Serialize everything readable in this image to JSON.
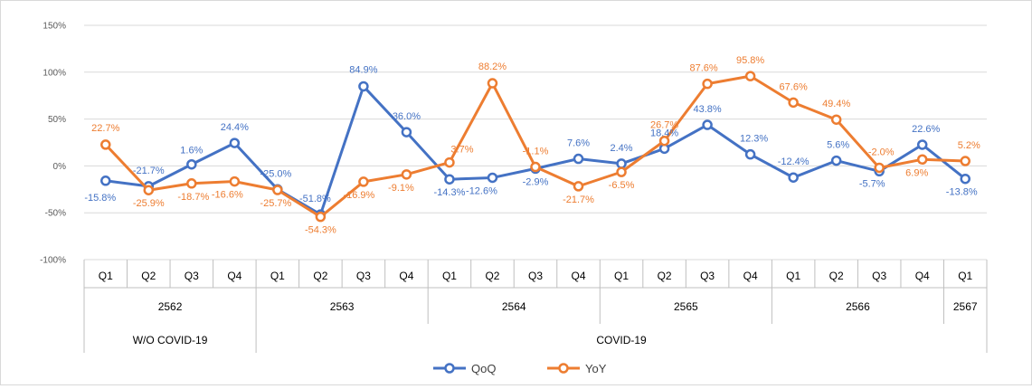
{
  "chart_data": {
    "type": "line",
    "y_unit": "%",
    "ylim": [
      -100,
      150
    ],
    "y_ticks": [
      "150%",
      "100%",
      "50%",
      "0%",
      "-50%",
      "-100%"
    ],
    "y_tick_values": [
      150,
      100,
      50,
      0,
      -50,
      -100
    ],
    "grid": true,
    "legend_position": "bottom",
    "categories": [
      "Q1",
      "Q2",
      "Q3",
      "Q4",
      "Q1",
      "Q2",
      "Q3",
      "Q4",
      "Q1",
      "Q2",
      "Q3",
      "Q4",
      "Q1",
      "Q2",
      "Q3",
      "Q4",
      "Q1",
      "Q2",
      "Q3",
      "Q4",
      "Q1"
    ],
    "years": [
      {
        "label": "2562",
        "count": 4
      },
      {
        "label": "2563",
        "count": 4
      },
      {
        "label": "2564",
        "count": 4
      },
      {
        "label": "2565",
        "count": 4
      },
      {
        "label": "2566",
        "count": 4
      },
      {
        "label": "2567",
        "count": 1
      }
    ],
    "groups": [
      {
        "label": "W/O COVID-19",
        "count": 4
      },
      {
        "label": "COVID-19",
        "count": 17
      }
    ],
    "series": [
      {
        "name": "QoQ",
        "color": "#4472C4",
        "values": [
          -15.8,
          -21.7,
          1.6,
          24.4,
          -25.0,
          -51.8,
          84.9,
          36.0,
          -14.3,
          -12.6,
          -2.9,
          7.6,
          2.4,
          18.4,
          43.8,
          12.3,
          -12.4,
          5.6,
          -5.7,
          22.6,
          -13.8
        ],
        "labels": [
          "-15.8%",
          "-21.7%",
          "1.6%",
          "24.4%",
          "-25.0%",
          "-51.8%",
          "84.9%",
          "36.0%",
          "-14.3%",
          "-12.6%",
          "-2.9%",
          "7.6%",
          "2.4%",
          "18.4%",
          "43.8%",
          "12.3%",
          "-12.4%",
          "5.6%",
          "-5.7%",
          "22.6%",
          "-13.8%"
        ]
      },
      {
        "name": "YoY",
        "color": "#ED7D31",
        "values": [
          22.7,
          -25.9,
          -18.7,
          -16.6,
          -25.7,
          -54.3,
          -16.9,
          -9.1,
          3.7,
          88.2,
          -1.1,
          -21.7,
          -6.5,
          26.7,
          87.6,
          95.8,
          67.6,
          49.4,
          -2.0,
          6.9,
          5.2
        ],
        "labels": [
          "22.7%",
          "-25.9%",
          "-18.7%",
          "-16.6%",
          "-25.7%",
          "-54.3%",
          "-16.9%",
          "-9.1%",
          "3.7%",
          "88.2%",
          "-1.1%",
          "-21.7%",
          "-6.5%",
          "26.7%",
          "87.6%",
          "95.8%",
          "67.6%",
          "49.4%",
          "-2.0%",
          "6.9%",
          "5.2%"
        ]
      }
    ]
  }
}
